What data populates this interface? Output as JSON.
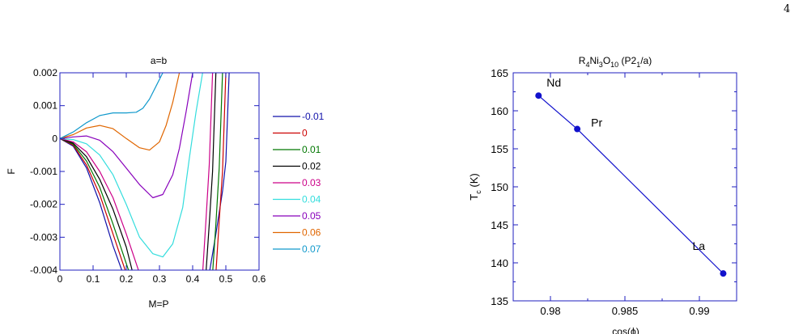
{
  "page_number": "4",
  "colors": {
    "frame": "#1f1fbf",
    "series": [
      "#1111aa",
      "#cc0000",
      "#007700",
      "#000000",
      "#cc0088",
      "#33dddd",
      "#8800bb",
      "#e06600",
      "#1199cc"
    ]
  },
  "chart_data": [
    {
      "type": "line",
      "title": "a=b",
      "xlabel": "M=P",
      "ylabel": "F",
      "xlim": [
        0,
        0.6
      ],
      "ylim": [
        -0.004,
        0.002
      ],
      "x_ticks": [
        "0",
        "0.1",
        "0.2",
        "0.3",
        "0.4",
        "0.5",
        "0.6"
      ],
      "y_ticks": [
        "0.002",
        "0.001",
        "0",
        "-0.001",
        "-0.002",
        "-0.003",
        "-0.004"
      ],
      "legend_position": "right",
      "series": [
        {
          "name": "-0.01",
          "x": [
            0,
            0.04,
            0.08,
            0.12,
            0.16,
            0.19,
            0.45,
            0.47,
            0.49,
            0.5,
            0.51
          ],
          "y": [
            0,
            -0.00023,
            -0.00089,
            -0.00195,
            -0.00326,
            -0.0041,
            -0.0041,
            -0.0029,
            -0.0016,
            -0.0007,
            0.002
          ]
        },
        {
          "name": "0",
          "x": [
            0,
            0.04,
            0.08,
            0.12,
            0.16,
            0.2,
            0.47,
            0.48,
            0.49,
            0.5
          ],
          "y": [
            0,
            -0.0002,
            -0.0008,
            -0.0017,
            -0.0029,
            -0.0041,
            -0.0041,
            -0.0025,
            -0.001,
            0.002
          ]
        },
        {
          "name": "0.01",
          "x": [
            0,
            0.04,
            0.08,
            0.12,
            0.16,
            0.21,
            0.46,
            0.47,
            0.48,
            0.49
          ],
          "y": [
            0,
            -0.00017,
            -0.00068,
            -0.00148,
            -0.0026,
            -0.0041,
            -0.0041,
            -0.0026,
            -0.0009,
            0.002
          ]
        },
        {
          "name": "0.02",
          "x": [
            0,
            0.04,
            0.08,
            0.12,
            0.16,
            0.2,
            0.22,
            0.44,
            0.45,
            0.46,
            0.47
          ],
          "y": [
            0,
            -0.00014,
            -0.00055,
            -0.00124,
            -0.00215,
            -0.0033,
            -0.0041,
            -0.0041,
            -0.0026,
            -0.001,
            0.002
          ]
        },
        {
          "name": "0.03",
          "x": [
            0,
            0.04,
            0.08,
            0.12,
            0.16,
            0.2,
            0.24,
            0.43,
            0.44,
            0.45,
            0.46
          ],
          "y": [
            0,
            -0.0001,
            -0.0004,
            -0.001,
            -0.0018,
            -0.0029,
            -0.0041,
            -0.0041,
            -0.0025,
            -0.0008,
            0.002
          ]
        },
        {
          "name": "0.04",
          "x": [
            0,
            0.04,
            0.08,
            0.12,
            0.16,
            0.2,
            0.24,
            0.28,
            0.31,
            0.34,
            0.37,
            0.39,
            0.41,
            0.43
          ],
          "y": [
            0,
            -3e-05,
            -0.00016,
            -0.0005,
            -0.0011,
            -0.002,
            -0.003,
            -0.0035,
            -0.0036,
            -0.0032,
            -0.0021,
            -0.0006,
            0.0008,
            0.002
          ]
        },
        {
          "name": "0.05",
          "x": [
            0,
            0.04,
            0.08,
            0.12,
            0.16,
            0.2,
            0.24,
            0.28,
            0.31,
            0.34,
            0.36,
            0.38,
            0.4
          ],
          "y": [
            0,
            5e-05,
            8e-05,
            -5e-05,
            -0.0004,
            -0.0009,
            -0.0014,
            -0.0018,
            -0.0017,
            -0.0011,
            -0.0003,
            0.0008,
            0.002
          ]
        },
        {
          "name": "0.06",
          "x": [
            0,
            0.04,
            0.08,
            0.12,
            0.16,
            0.2,
            0.24,
            0.27,
            0.3,
            0.32,
            0.34,
            0.36
          ],
          "y": [
            0,
            0.00012,
            0.00032,
            0.0004,
            0.0003,
            0,
            -0.00028,
            -0.00035,
            -0.0001,
            0.0004,
            0.0011,
            0.002
          ]
        },
        {
          "name": "0.07",
          "x": [
            0,
            0.04,
            0.08,
            0.12,
            0.16,
            0.2,
            0.23,
            0.25,
            0.27,
            0.29,
            0.31
          ],
          "y": [
            0,
            0.0002,
            0.00048,
            0.0007,
            0.00078,
            0.00078,
            0.0008,
            0.00092,
            0.0012,
            0.0016,
            0.002
          ]
        }
      ]
    },
    {
      "type": "line",
      "title_main": "R",
      "title_parts": [
        "4",
        "Ni",
        "3",
        "O",
        "10",
        " (P2",
        "1",
        "/a)"
      ],
      "xlabel": "cos(ϕ)",
      "ylabel_main": "T",
      "ylabel_sub": "c",
      "ylabel_tail": " (K)",
      "xlim": [
        0.9775,
        0.9925
      ],
      "ylim": [
        135,
        165
      ],
      "x_ticks": [
        "0.98",
        "0.985",
        "0.99"
      ],
      "y_ticks": [
        "165",
        "160",
        "155",
        "150",
        "145",
        "140",
        "135"
      ],
      "series": [
        {
          "labels": [
            "Nd",
            "Pr",
            "La"
          ],
          "x": [
            0.9792,
            0.9818,
            0.9916
          ],
          "y": [
            162.0,
            157.6,
            138.6
          ]
        }
      ]
    }
  ]
}
